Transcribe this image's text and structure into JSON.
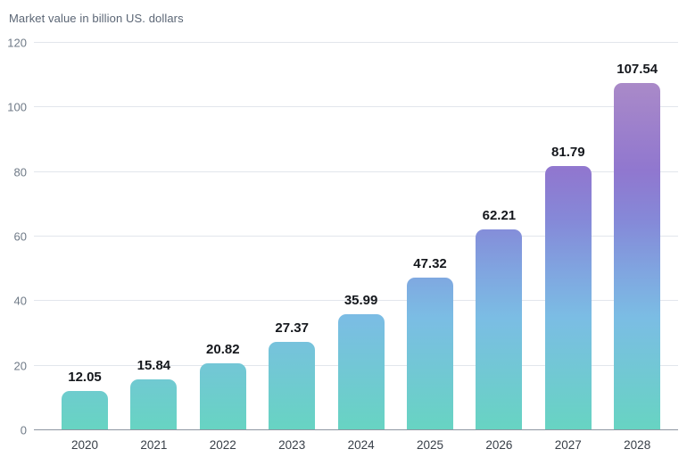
{
  "chart_data": {
    "type": "bar",
    "title": "Market value in billion US. dollars",
    "categories": [
      "2020",
      "2021",
      "2022",
      "2023",
      "2024",
      "2025",
      "2026",
      "2027",
      "2028"
    ],
    "values": [
      12.05,
      15.84,
      20.82,
      27.37,
      35.99,
      47.32,
      62.21,
      81.79,
      107.54
    ],
    "value_labels": [
      "12.05",
      "15.84",
      "20.82",
      "27.37",
      "35.99",
      "47.32",
      "62.21",
      "81.79",
      "107.54"
    ],
    "xlabel": "",
    "ylabel": "",
    "ylim": [
      0,
      120
    ],
    "yticks": [
      0,
      20,
      40,
      60,
      80,
      100,
      120
    ],
    "grid": true,
    "legend": false,
    "colors": {
      "bar_gradient_bottom_to_top": [
        {
          "pos": 0,
          "color": "#67d4c2"
        },
        {
          "pos": 29,
          "color": "#7bbde4"
        },
        {
          "pos": 41,
          "color": "#80a5e0"
        },
        {
          "pos": 54,
          "color": "#8589d8"
        },
        {
          "pos": 67,
          "color": "#9077cf"
        },
        {
          "pos": 90,
          "color": "#aa8ac8"
        },
        {
          "pos": 100,
          "color": "#b392c7"
        }
      ],
      "gridline": "#e2e6ec",
      "axis_line": "#8e96a1",
      "value_label": "#14171c",
      "tick_label": "#6f7a87",
      "category_label": "#394049",
      "title": "#5b6675"
    }
  }
}
